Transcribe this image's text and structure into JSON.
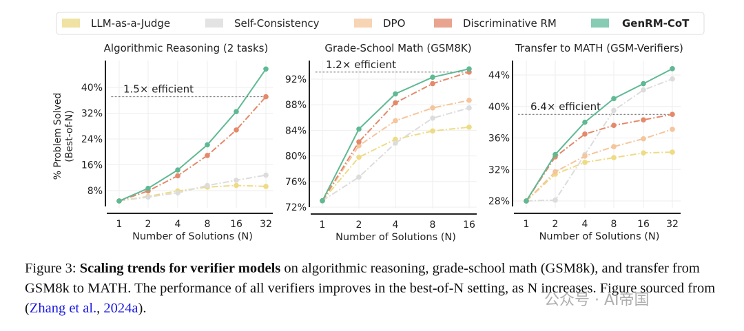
{
  "legend": [
    {
      "name": "LLM-as-a-Judge",
      "color": "#efe2a2"
    },
    {
      "name": "Self-Consistency",
      "color": "#e3e3e3"
    },
    {
      "name": "DPO",
      "color": "#f6d4b4"
    },
    {
      "name": "Discriminative RM",
      "color": "#e8a48e"
    },
    {
      "name": "GenRM-CoT",
      "color": "#86cbb4",
      "bold": true
    }
  ],
  "chart_data": [
    {
      "type": "line",
      "title": "Algorithmic Reasoning (2 tasks)",
      "xlabel": "Number of Solutions (N)",
      "ylabel": "% Problem Solved\n(Best-of-N)",
      "ylabel_lines": [
        "% Problem Solved",
        "(Best-of-N)"
      ],
      "x": [
        1,
        2,
        4,
        8,
        16,
        32
      ],
      "x_ticks": [
        "1",
        "2",
        "4",
        "8",
        "16",
        "32"
      ],
      "x_scale": "log2",
      "y_ticks": [
        "8%",
        "16%",
        "24%",
        "32%",
        "40%"
      ],
      "y_tick_values": [
        8,
        16,
        24,
        32,
        40
      ],
      "grid": true,
      "annotation": {
        "text": "1.5× efficient",
        "y": 37.1
      },
      "series": [
        {
          "name": "LLM-as-a-Judge",
          "color": "#eedb84",
          "style": "dashdot",
          "values": [
            4.8,
            6.2,
            7.9,
            9.1,
            9.6,
            9.3
          ]
        },
        {
          "name": "Self-Consistency",
          "color": "#dcdcdc",
          "style": "dashdot",
          "values": [
            4.8,
            6.0,
            7.3,
            9.6,
            11.2,
            12.8
          ]
        },
        {
          "name": "Discriminative RM",
          "color": "#e4896a",
          "style": "dashdot",
          "values": [
            4.8,
            7.9,
            12.6,
            18.9,
            26.8,
            37.1
          ]
        },
        {
          "name": "GenRM-CoT",
          "color": "#5fb994",
          "style": "solid",
          "values": [
            4.8,
            8.7,
            14.4,
            22.2,
            32.5,
            45.7
          ]
        }
      ]
    },
    {
      "type": "line",
      "title": "Grade-School Math (GSM8K)",
      "xlabel": "Number of Solutions (N)",
      "x": [
        1,
        2,
        4,
        8,
        16
      ],
      "x_ticks": [
        "1",
        "2",
        "4",
        "8",
        "16"
      ],
      "x_scale": "log2",
      "y_ticks": [
        "72%",
        "76%",
        "80%",
        "84%",
        "88%",
        "92%"
      ],
      "y_tick_values": [
        72,
        76,
        80,
        84,
        88,
        92
      ],
      "grid": true,
      "annotation": {
        "text": "1.2× efficient",
        "y": 93.1
      },
      "series": [
        {
          "name": "LLM-as-a-Judge",
          "color": "#eedb84",
          "style": "dashdot",
          "values": [
            73.0,
            79.8,
            82.6,
            83.9,
            84.5
          ]
        },
        {
          "name": "Self-Consistency",
          "color": "#dcdcdc",
          "style": "dashdot",
          "values": [
            73.0,
            76.7,
            82.0,
            85.9,
            87.5
          ]
        },
        {
          "name": "DPO",
          "color": "#f5c59b",
          "style": "dashdot",
          "values": [
            73.0,
            81.6,
            85.5,
            87.5,
            88.7
          ]
        },
        {
          "name": "Discriminative RM",
          "color": "#e4896a",
          "style": "dashdot",
          "values": [
            73.0,
            82.2,
            88.3,
            91.3,
            93.1
          ]
        },
        {
          "name": "GenRM-CoT",
          "color": "#5fb994",
          "style": "solid",
          "values": [
            73.0,
            84.2,
            89.7,
            92.3,
            93.6
          ]
        }
      ]
    },
    {
      "type": "line",
      "title": "Transfer to MATH (GSM-Verifiers)",
      "xlabel": "Number of Solutions (N)",
      "x": [
        1,
        2,
        4,
        8,
        16,
        32
      ],
      "x_ticks": [
        "1",
        "2",
        "4",
        "8",
        "16",
        "32"
      ],
      "x_scale": "log2",
      "y_ticks": [
        "28%",
        "32%",
        "36%",
        "40%",
        "44%"
      ],
      "y_tick_values": [
        28,
        32,
        36,
        40,
        44
      ],
      "grid": true,
      "annotation": {
        "text": "6.4× efficient",
        "y": 39.0
      },
      "series": [
        {
          "name": "LLM-as-a-Judge",
          "color": "#eedb84",
          "style": "dashdot",
          "values": [
            28.0,
            31.4,
            32.9,
            33.5,
            34.1,
            34.2
          ]
        },
        {
          "name": "Self-Consistency",
          "color": "#dcdcdc",
          "style": "dashdot",
          "values": [
            28.0,
            28.1,
            33.9,
            39.5,
            42.1,
            43.5
          ]
        },
        {
          "name": "DPO",
          "color": "#f5c59b",
          "style": "dashdot",
          "values": [
            28.0,
            31.7,
            33.7,
            34.9,
            35.9,
            37.1
          ]
        },
        {
          "name": "Discriminative RM",
          "color": "#e4896a",
          "style": "dashdot",
          "values": [
            28.0,
            33.6,
            36.5,
            37.6,
            38.3,
            39.0
          ]
        },
        {
          "name": "GenRM-CoT",
          "color": "#5fb994",
          "style": "solid",
          "values": [
            28.0,
            33.9,
            38.0,
            41.0,
            42.9,
            44.8
          ]
        }
      ]
    }
  ],
  "caption": {
    "label": "Figure 3",
    "colon": ": ",
    "bold": "Scaling trends for verifier models",
    "text": " on algorithmic reasoning, grade-school math (GSM8k), and transfer from GSM8k to MATH. The performance of all verifiers improves in the best-of-N setting, as N increases. Figure sourced from (",
    "cite_author": "Zhang et al.",
    "sep": ", ",
    "cite_year": "2024a",
    "end": ")."
  },
  "watermark": "公众号 · AI帝国"
}
